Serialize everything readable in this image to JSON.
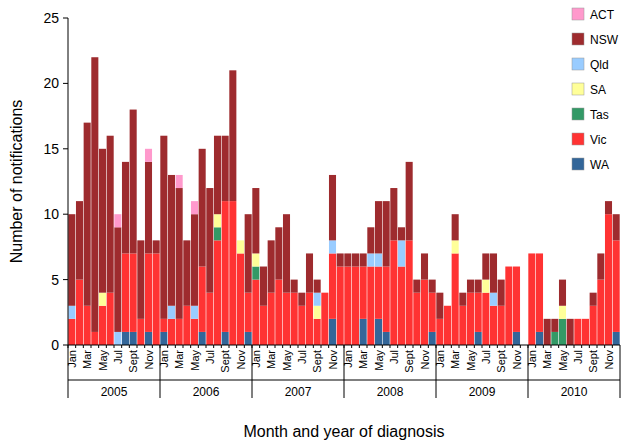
{
  "chart_data": {
    "type": "bar",
    "stacked": true,
    "legend": "top-right",
    "grid": false,
    "y_label": "Number of notifications",
    "x_label": "Month and year of diagnosis",
    "categories": [
      "Jan",
      null,
      "Mar",
      null,
      "May",
      null,
      "Jul",
      null,
      "Sept",
      null,
      "Nov",
      null,
      "Jan",
      null,
      "Mar",
      null,
      "May",
      null,
      "Jul",
      null,
      "Sept",
      null,
      "Nov",
      null,
      "Jan",
      null,
      "Mar",
      null,
      "May",
      null,
      "Jul",
      null,
      "Sept",
      null,
      "Nov",
      null,
      "Jan",
      null,
      "Mar",
      null,
      "May",
      null,
      "Jul",
      null,
      "Sept",
      null,
      "Nov",
      null,
      "Jan",
      null,
      "Mar",
      null,
      "May",
      null,
      "Jul",
      null,
      "Sept",
      null,
      "Nov",
      null,
      "Jan",
      null,
      "Mar",
      null,
      "May",
      null,
      "Jul",
      null,
      "Sept",
      null,
      "Nov",
      null
    ],
    "years": [
      "2005",
      "2006",
      "2007",
      "2008",
      "2009",
      "2010"
    ],
    "ylim": [
      0,
      25
    ],
    "yticks": [
      0,
      5,
      10,
      15,
      20,
      25
    ],
    "series": [
      {
        "name": "ACT",
        "color": "#ff99cc",
        "values": [
          0,
          0,
          0,
          0,
          0,
          0,
          1,
          0,
          0,
          0,
          1,
          0,
          0,
          0,
          1,
          0,
          1,
          0,
          0,
          0,
          0,
          0,
          0,
          0,
          0,
          0,
          0,
          0,
          0,
          0,
          0,
          0,
          0,
          0,
          0,
          0,
          0,
          0,
          0,
          0,
          0,
          0,
          0,
          0,
          0,
          0,
          0,
          0,
          0,
          0,
          0,
          0,
          0,
          0,
          0,
          0,
          0,
          0,
          0,
          0,
          0,
          0,
          0,
          0,
          0,
          0,
          0,
          0,
          0,
          0,
          0,
          0
        ]
      },
      {
        "name": "NSW",
        "color": "#9e2b2e",
        "values": [
          7,
          6,
          14,
          21,
          11,
          12,
          8,
          7,
          11,
          6,
          7,
          1,
          14,
          10,
          10,
          5,
          7,
          9,
          8,
          6,
          5,
          10,
          0,
          6,
          5,
          3,
          4,
          4,
          6,
          1,
          1,
          3,
          1,
          0,
          5,
          1,
          1,
          1,
          1,
          2,
          4,
          5,
          4,
          1,
          6,
          1,
          2,
          1,
          2,
          0,
          2,
          1,
          1,
          1,
          2,
          3,
          2,
          0,
          0,
          0,
          0,
          0,
          2,
          1,
          2,
          2,
          0,
          0,
          1,
          2,
          1,
          2
        ]
      },
      {
        "name": "Qld",
        "color": "#99ccff",
        "values": [
          1,
          0,
          0,
          0,
          0,
          0,
          1,
          0,
          0,
          0,
          0,
          0,
          0,
          1,
          0,
          0,
          1,
          0,
          0,
          0,
          0,
          0,
          0,
          0,
          0,
          0,
          0,
          0,
          0,
          0,
          0,
          0,
          1,
          0,
          1,
          0,
          0,
          0,
          0,
          1,
          1,
          0,
          0,
          2,
          0,
          0,
          0,
          0,
          0,
          0,
          0,
          0,
          0,
          0,
          0,
          1,
          0,
          0,
          0,
          0,
          0,
          0,
          0,
          0,
          0,
          0,
          0,
          0,
          0,
          0,
          0,
          0
        ]
      },
      {
        "name": "SA",
        "color": "#ffff99",
        "values": [
          0,
          0,
          0,
          0,
          1,
          0,
          0,
          0,
          0,
          0,
          0,
          0,
          0,
          0,
          0,
          0,
          0,
          0,
          0,
          1,
          0,
          0,
          1,
          0,
          1,
          0,
          0,
          0,
          0,
          0,
          0,
          0,
          1,
          0,
          0,
          0,
          0,
          0,
          0,
          0,
          0,
          0,
          0,
          0,
          0,
          0,
          0,
          0,
          0,
          0,
          1,
          0,
          0,
          0,
          1,
          0,
          0,
          0,
          0,
          0,
          0,
          0,
          0,
          0,
          1,
          0,
          0,
          0,
          0,
          0,
          0,
          0
        ]
      },
      {
        "name": "Tas",
        "color": "#339966",
        "values": [
          0,
          0,
          0,
          0,
          0,
          0,
          0,
          0,
          0,
          0,
          0,
          0,
          0,
          0,
          0,
          0,
          0,
          0,
          0,
          1,
          0,
          0,
          0,
          0,
          1,
          0,
          0,
          0,
          0,
          0,
          0,
          0,
          0,
          0,
          0,
          0,
          0,
          0,
          0,
          0,
          0,
          0,
          0,
          0,
          0,
          0,
          0,
          0,
          0,
          0,
          0,
          0,
          0,
          0,
          0,
          0,
          0,
          0,
          0,
          0,
          0,
          0,
          0,
          1,
          2,
          0,
          0,
          0,
          0,
          0,
          0,
          0
        ]
      },
      {
        "name": "Vic",
        "color": "#ff3333",
        "values": [
          2,
          5,
          3,
          1,
          3,
          4,
          0,
          6,
          6,
          2,
          6,
          7,
          1,
          2,
          2,
          3,
          2,
          5,
          4,
          8,
          10,
          11,
          7,
          3,
          5,
          3,
          4,
          5,
          4,
          4,
          3,
          4,
          2,
          4,
          5,
          6,
          6,
          6,
          4,
          6,
          4,
          5,
          8,
          6,
          8,
          4,
          5,
          3,
          2,
          3,
          7,
          3,
          4,
          3,
          4,
          3,
          3,
          6,
          5,
          0,
          7,
          6,
          0,
          0,
          0,
          0,
          2,
          2,
          3,
          5,
          10,
          7
        ]
      },
      {
        "name": "WA",
        "color": "#336699",
        "values": [
          0,
          0,
          0,
          0,
          0,
          0,
          0,
          1,
          1,
          0,
          1,
          0,
          1,
          0,
          0,
          0,
          0,
          1,
          0,
          0,
          1,
          0,
          0,
          1,
          0,
          0,
          0,
          0,
          0,
          0,
          0,
          0,
          0,
          0,
          2,
          0,
          0,
          0,
          2,
          0,
          2,
          1,
          0,
          0,
          0,
          0,
          0,
          1,
          0,
          0,
          0,
          0,
          0,
          1,
          0,
          0,
          0,
          0,
          1,
          0,
          0,
          1,
          0,
          0,
          0,
          0,
          0,
          0,
          0,
          0,
          0,
          1
        ]
      }
    ]
  }
}
